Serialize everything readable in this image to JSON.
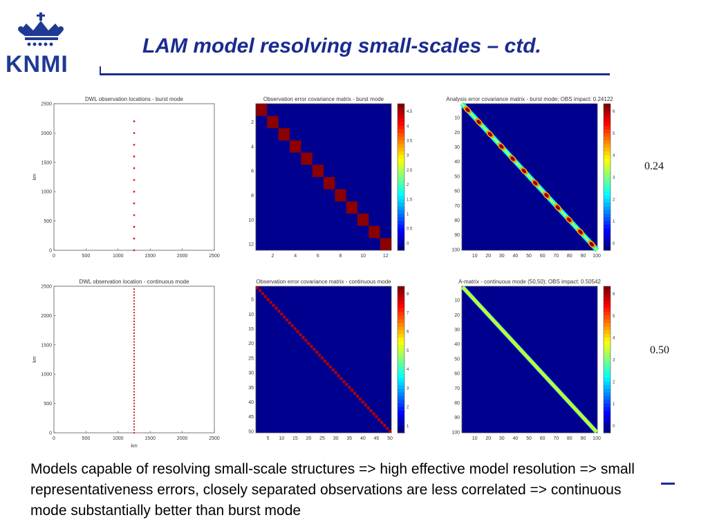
{
  "header": {
    "logo_text": "KNMI",
    "title": "LAM model resolving small-scales – ctd."
  },
  "impacts": {
    "burst": "0.24",
    "continuous": "0.50"
  },
  "caption": "Models capable of resolving small-scale structures => high effective model resolution => small representativeness errors, closely separated observations are less correlated => continuous mode substantially better than burst mode",
  "colors": {
    "accent": "#1a2a8f",
    "matrix_bg": "#00008f",
    "obs_point": "#e02020"
  },
  "chart_data": [
    {
      "type": "scatter",
      "title": "DWL observation locations - burst mode",
      "ylabel": "km",
      "xlim": [
        0,
        2500
      ],
      "ylim": [
        0,
        2500
      ],
      "xticks": [
        "0",
        "500",
        "1000",
        "1500",
        "2000",
        "2500"
      ],
      "yticks": [
        "0",
        "500",
        "1000",
        "1500",
        "2000",
        "2500"
      ],
      "x": [
        1250,
        1250,
        1250,
        1250,
        1250,
        1250,
        1250,
        1250,
        1250,
        1250,
        1250,
        1250
      ],
      "y": [
        0,
        200,
        400,
        600,
        800,
        1000,
        1200,
        1400,
        1600,
        1800,
        2000,
        2200
      ]
    },
    {
      "type": "heatmap",
      "title": "Observation error covariance matrix - burst mode",
      "size": 12,
      "pattern": "block-diagonal",
      "xticks": [
        "2",
        "4",
        "6",
        "8",
        "10",
        "12"
      ],
      "yticks": [
        "2",
        "4",
        "6",
        "8",
        "10",
        "12"
      ],
      "colorbar": [
        "0",
        "0.5",
        "1",
        "1.5",
        "2",
        "2.5",
        "3",
        "3.5",
        "4",
        "4.5"
      ]
    },
    {
      "type": "heatmap",
      "title": "Analysis error covariance matrix - burst mode; OBS impact: 0.24122",
      "size": 100,
      "pattern": "beaded-diagonal",
      "xticks": [
        "10",
        "20",
        "30",
        "40",
        "50",
        "60",
        "70",
        "80",
        "90",
        "100"
      ],
      "yticks": [
        "10",
        "20",
        "30",
        "40",
        "50",
        "60",
        "70",
        "80",
        "90",
        "100"
      ],
      "colorbar": [
        "0",
        "1",
        "2",
        "3",
        "4",
        "5",
        "6"
      ]
    },
    {
      "type": "scatter",
      "title": "DWL observation location - continuous mode",
      "xlabel": "km",
      "ylabel": "km",
      "xlim": [
        0,
        2500
      ],
      "ylim": [
        0,
        2500
      ],
      "xticks": [
        "0",
        "500",
        "1000",
        "1500",
        "2000",
        "2500"
      ],
      "yticks": [
        "0",
        "500",
        "1000",
        "1500",
        "2000",
        "2500"
      ],
      "x_const": 1250,
      "y_count": 50,
      "y_start": 0,
      "y_step": 50
    },
    {
      "type": "heatmap",
      "title": "Observation error covariance matrix - continuous mode",
      "size": 50,
      "pattern": "thin-diagonal",
      "xticks": [
        "5",
        "10",
        "15",
        "20",
        "25",
        "30",
        "35",
        "40",
        "45",
        "50"
      ],
      "yticks": [
        "5",
        "10",
        "15",
        "20",
        "25",
        "30",
        "35",
        "40",
        "45",
        "50"
      ],
      "colorbar": [
        "1",
        "2",
        "3",
        "4",
        "5",
        "6",
        "7",
        "8"
      ]
    },
    {
      "type": "heatmap",
      "title": "A-matrix - continuous mode (50,50); OBS impact: 0.50542",
      "size": 100,
      "pattern": "smooth-diagonal",
      "xticks": [
        "10",
        "20",
        "30",
        "40",
        "50",
        "60",
        "70",
        "80",
        "90",
        "100"
      ],
      "yticks": [
        "10",
        "20",
        "30",
        "40",
        "50",
        "60",
        "70",
        "80",
        "90",
        "100"
      ],
      "colorbar": [
        "0",
        "1",
        "2",
        "3",
        "4",
        "5",
        "6"
      ]
    }
  ]
}
